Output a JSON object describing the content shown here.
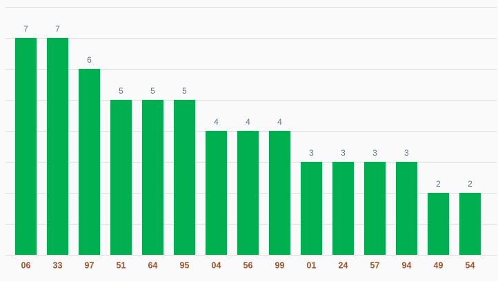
{
  "chart_data": {
    "type": "bar",
    "categories": [
      "06",
      "33",
      "97",
      "51",
      "64",
      "95",
      "04",
      "56",
      "99",
      "01",
      "24",
      "57",
      "94",
      "49",
      "54"
    ],
    "values": [
      7,
      7,
      6,
      5,
      5,
      5,
      4,
      4,
      4,
      3,
      3,
      3,
      3,
      2,
      2
    ],
    "color": "#00b050",
    "ylim": [
      0,
      8
    ],
    "yticks": [
      0,
      1,
      2,
      3,
      4,
      5,
      6,
      7,
      8
    ],
    "grid": true
  }
}
